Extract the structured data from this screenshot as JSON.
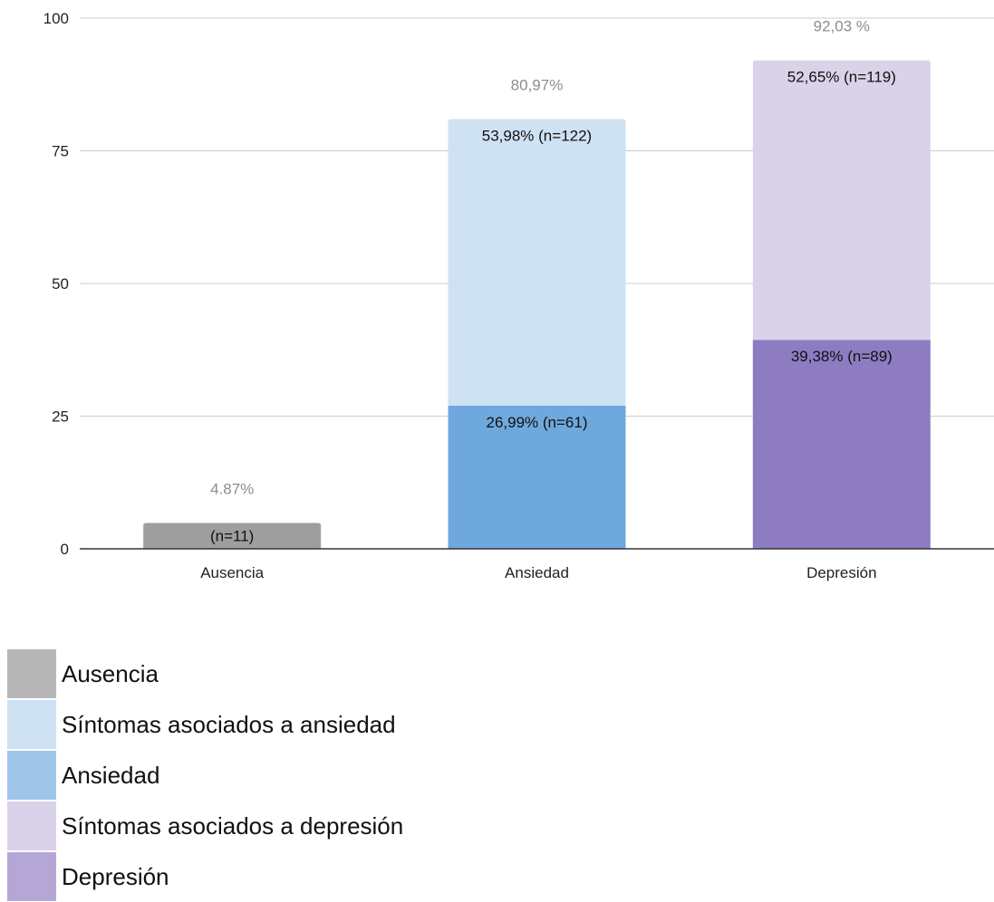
{
  "chart_data": {
    "type": "bar",
    "stacked": true,
    "title": "",
    "xlabel": "",
    "ylabel": "",
    "ylim": [
      0,
      100
    ],
    "yticks": [
      "0",
      "25",
      "50",
      "75",
      "100"
    ],
    "grid": true,
    "legend_position": "bottom-left",
    "categories": [
      "Ausencia",
      "Ansiedad",
      "Depresión"
    ],
    "bars": [
      {
        "category": "Ausencia",
        "total_label": "4.87%",
        "segments": [
          {
            "series": "Ausencia",
            "value": 4.87,
            "label": "(n=11)",
            "color": "#9e9e9e"
          }
        ]
      },
      {
        "category": "Ansiedad",
        "total_label": "80,97%",
        "segments": [
          {
            "series": "Ansiedad",
            "value": 26.99,
            "label": "26,99% (n=61)",
            "color": "#6fa8dc"
          },
          {
            "series": "Síntomas asociados a ansiedad",
            "value": 53.98,
            "label": "53,98% (n=122)",
            "color": "#cfe2f3"
          }
        ]
      },
      {
        "category": "Depresión",
        "total_label": "92,03 %",
        "segments": [
          {
            "series": "Depresión",
            "value": 39.38,
            "label": "39,38% (n=89)",
            "color": "#8e7cc3"
          },
          {
            "series": "Síntomas asociados a depresión",
            "value": 52.65,
            "label": "52,65% (n=119)",
            "color": "#d9d2e9"
          }
        ]
      }
    ],
    "legend": [
      {
        "name": "Ausencia",
        "color": "#b7b7b7"
      },
      {
        "name": "Síntomas asociados a ansiedad",
        "color": "#cfe2f3"
      },
      {
        "name": "Ansiedad",
        "color": "#9fc5e8"
      },
      {
        "name": "Síntomas asociados a depresión",
        "color": "#d9d2e9"
      },
      {
        "name": "Depresión",
        "color": "#b4a7d6"
      }
    ]
  }
}
